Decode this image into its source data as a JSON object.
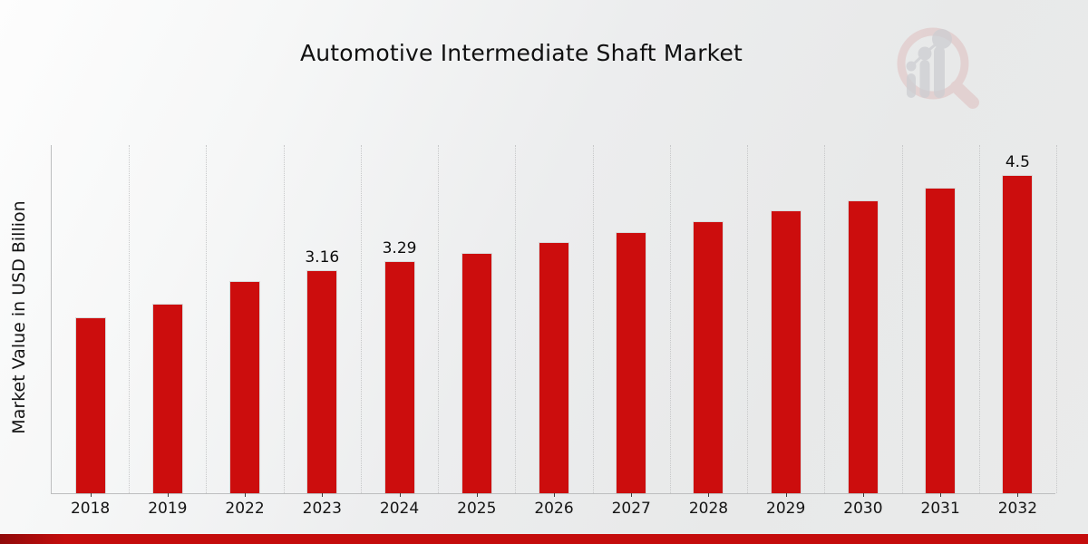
{
  "title": "Automotive Intermediate Shaft Market",
  "ylabel": "Market Value in USD Billion",
  "colors": {
    "bar": "#cc0d0d",
    "bar_edge": "#d9d9d9",
    "footer_strip": "#c40c0c",
    "grid": "#c7c8c9",
    "axis": "#bdbebf",
    "text": "#141414"
  },
  "watermark": {
    "icon": "market-research-future-logo"
  },
  "chart_data": {
    "type": "bar",
    "title": "Automotive Intermediate Shaft Market",
    "xlabel": "",
    "ylabel": "Market Value in USD Billion",
    "categories": [
      "2018",
      "2019",
      "2022",
      "2023",
      "2024",
      "2025",
      "2026",
      "2027",
      "2028",
      "2029",
      "2030",
      "2031",
      "2032"
    ],
    "values": [
      2.49,
      2.68,
      3.0,
      3.16,
      3.29,
      3.4,
      3.55,
      3.69,
      3.85,
      4.0,
      4.14,
      4.32,
      4.5
    ],
    "bar_labels": [
      "",
      "",
      "",
      "3.16",
      "3.29",
      "",
      "",
      "",
      "",
      "",
      "",
      "",
      "4.5"
    ],
    "ylim": [
      0,
      4.94
    ],
    "yticks_visible": false,
    "grid": "vertical dotted lines at category boundaries",
    "legend_position": "none"
  }
}
